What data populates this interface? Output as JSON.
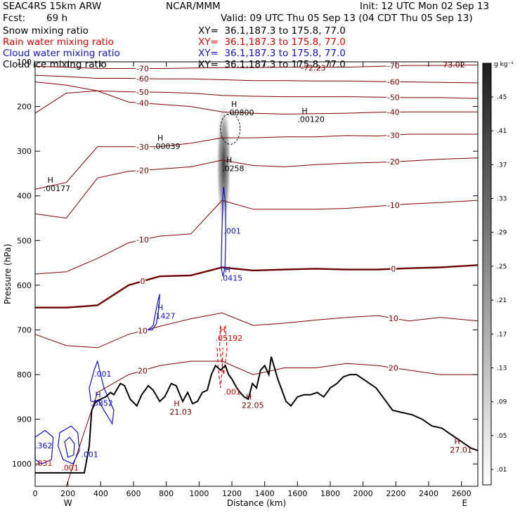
{
  "header": {
    "model": "SEAC4RS 15km ARW",
    "org": "NCAR/MMM",
    "init": "Init: 12 UTC Mon 02 Sep 13",
    "fcst_label": "Fcst:",
    "fcst_value": "69 h",
    "valid": "Valid: 09 UTC Thu 05 Sep 13 (04 CDT Thu 05 Sep 13)"
  },
  "fields": [
    {
      "name": "Snow mixing ratio",
      "xy": "XY=  36.1,187.3 to 175.8, 77.0",
      "color": "#000000"
    },
    {
      "name": "Rain water mixing ratio",
      "xy": "XY=  36.1,187.3 to 175.8, 77.0",
      "color": "#e00000"
    },
    {
      "name": "Cloud water mixing ratio",
      "xy": "XY=  36.1,187.3 to 175.8, 77.0",
      "color": "#1010d0"
    },
    {
      "name": "Cloud ice mixing ratio",
      "xy": "XY=  36.1,187.3 to 175.8, 77.0",
      "color": "#000000"
    }
  ],
  "colors": {
    "temperature": "#7a0000",
    "zero_isotherm": "#6b0000",
    "terrain": "#000000",
    "rain": "#e00000",
    "cloud_water": "#1010d0",
    "snow": "#000000"
  },
  "chart_data": {
    "type": "cross-section",
    "xlabel": "Distance (km)",
    "ylabel": "Pressure (hPa)",
    "xlim": [
      0,
      2700
    ],
    "ylim": [
      1050,
      100
    ],
    "x_ticks": [
      0,
      200,
      400,
      600,
      800,
      1000,
      1200,
      1400,
      1600,
      1800,
      2000,
      2200,
      2400,
      2600
    ],
    "y_ticks": [
      100,
      200,
      300,
      400,
      500,
      600,
      700,
      800,
      900,
      1000
    ],
    "x_ends": {
      "left": "W",
      "right": "E"
    },
    "colorbar": {
      "unit": "g kg⁻¹",
      "ticks": [
        ".01",
        ".05",
        ".09",
        ".13",
        ".17",
        ".21",
        ".25",
        ".29",
        ".33",
        ".37",
        ".41",
        ".45"
      ]
    },
    "isotherms": [
      {
        "t": -70,
        "p": [
          110,
          112,
          115,
          115,
          115,
          114,
          113,
          113,
          112,
          112,
          112,
          110,
          108,
          108,
          107
        ]
      },
      {
        "t": -60,
        "p": [
          130,
          133,
          137,
          137,
          138,
          138,
          140,
          142,
          142,
          143,
          143,
          144,
          145,
          146,
          147
        ]
      },
      {
        "t": -50,
        "p": [
          145,
          152,
          165,
          167,
          168,
          170,
          175,
          177,
          178,
          178,
          178,
          179,
          180,
          180,
          182
        ]
      },
      {
        "t": -40,
        "p": [
          215,
          170,
          165,
          190,
          195,
          200,
          212,
          215,
          217,
          216,
          215,
          213,
          212,
          212,
          212
        ]
      },
      {
        "t": -30,
        "p": [
          385,
          370,
          290,
          290,
          290,
          282,
          270,
          270,
          268,
          268,
          265,
          266,
          262,
          262,
          262
        ]
      },
      {
        "t": -20,
        "p": [
          440,
          450,
          360,
          345,
          340,
          335,
          320,
          332,
          335,
          330,
          327,
          325,
          322,
          318,
          315
        ]
      },
      {
        "t": -10,
        "p": [
          575,
          570,
          540,
          505,
          490,
          485,
          410,
          430,
          430,
          430,
          428,
          423,
          418,
          415,
          410
        ]
      },
      {
        "t": 0,
        "p": [
          650,
          650,
          645,
          600,
          580,
          578,
          560,
          567,
          565,
          563,
          565,
          565,
          562,
          560,
          555
        ]
      },
      {
        "t": 10,
        "p": [
          710,
          735,
          740,
          710,
          692,
          675,
          662,
          690,
          685,
          678,
          672,
          668,
          680,
          672,
          680
        ]
      },
      {
        "t": 20,
        "p": [
          1050,
          1050,
          840,
          800,
          780,
          770,
          770,
          800,
          785,
          785,
          775,
          780,
          790,
          800,
          800
        ]
      }
    ],
    "terrain": {
      "x": [
        0,
        80,
        160,
        280,
        300,
        330,
        345,
        370,
        400,
        430,
        460,
        480,
        520,
        545,
        580,
        620,
        650,
        690,
        720,
        760,
        790,
        830,
        860,
        900,
        930,
        960,
        990,
        1020,
        1050,
        1075,
        1100,
        1130,
        1160,
        1180,
        1200,
        1230,
        1250,
        1275,
        1300,
        1325,
        1350,
        1375,
        1400,
        1425,
        1440,
        1460,
        1480,
        1500,
        1530,
        1560,
        1600,
        1640,
        1680,
        1720,
        1760,
        1800,
        1840,
        1880,
        1920,
        1960,
        2000,
        2040,
        2080,
        2120,
        2180,
        2240,
        2300,
        2360,
        2420,
        2480,
        2540,
        2580,
        2620,
        2660,
        2700
      ],
      "p": [
        1020,
        1020,
        1020,
        1020,
        1020,
        960,
        880,
        860,
        855,
        850,
        840,
        845,
        820,
        825,
        855,
        870,
        845,
        825,
        835,
        860,
        850,
        820,
        825,
        860,
        840,
        865,
        860,
        840,
        835,
        800,
        780,
        790,
        780,
        800,
        810,
        830,
        840,
        850,
        855,
        820,
        830,
        790,
        780,
        800,
        760,
        785,
        810,
        830,
        860,
        870,
        850,
        845,
        845,
        840,
        850,
        830,
        820,
        805,
        800,
        800,
        810,
        820,
        830,
        850,
        880,
        885,
        890,
        900,
        915,
        920,
        935,
        945,
        955,
        965,
        970
      ]
    },
    "maxima": [
      {
        "label": "H",
        "value": ".00800",
        "x": 1170,
        "p": 215,
        "field": "snow"
      },
      {
        "label": "H",
        "value": ".00120",
        "x": 1600,
        "p": 230,
        "field": "snow"
      },
      {
        "label": "H",
        "value": ".00039",
        "x": 720,
        "p": 290,
        "field": "snow"
      },
      {
        "label": "H",
        "value": ".0258",
        "x": 1140,
        "p": 340,
        "field": "snow"
      },
      {
        "label": "H",
        "value": ".00177",
        "x": 50,
        "p": 385,
        "field": "snow"
      },
      {
        "label": "",
        "value": ".001",
        "x": 1150,
        "p": 480,
        "field": "cloud_water"
      },
      {
        "label": "H",
        "value": ".0415",
        "x": 1130,
        "p": 585,
        "field": "cloud_water"
      },
      {
        "label": "H",
        "value": ".1427",
        "x": 720,
        "p": 670,
        "field": "cloud_water"
      },
      {
        "label": "H",
        "value": ".05192",
        "x": 1100,
        "p": 720,
        "field": "rain"
      },
      {
        "label": "",
        "value": ".001",
        "x": 360,
        "p": 800,
        "field": "cloud_water"
      },
      {
        "label": "H",
        "value": ".3852",
        "x": 340,
        "p": 865,
        "field": "cloud_water"
      },
      {
        "label": "",
        "value": ".362",
        "x": 0,
        "p": 960,
        "field": "cloud_water"
      },
      {
        "label": "",
        "value": ".001",
        "x": 280,
        "p": 980,
        "field": "cloud_water"
      },
      {
        "label": "",
        "value": ".031",
        "x": 0,
        "p": 1000,
        "field": "rain"
      },
      {
        "label": "",
        "value": ".001",
        "x": 160,
        "p": 1010,
        "field": "rain"
      },
      {
        "label": "",
        "value": ".001",
        "x": 1150,
        "p": 840,
        "field": "rain"
      },
      {
        "label": "H",
        "value": "21.03",
        "x": 820,
        "p": 885,
        "field": "temperature"
      },
      {
        "label": "H",
        "value": "22.05",
        "x": 1260,
        "p": 870,
        "field": "temperature"
      },
      {
        "label": "H",
        "value": "27.01",
        "x": 2530,
        "p": 970,
        "field": "temperature"
      },
      {
        "label": "",
        "value": "-72.23",
        "x": 1620,
        "p": 115,
        "field": "temperature"
      },
      {
        "label": "",
        "value": "-73.02",
        "x": 2470,
        "p": 108,
        "field": "temperature"
      }
    ]
  }
}
